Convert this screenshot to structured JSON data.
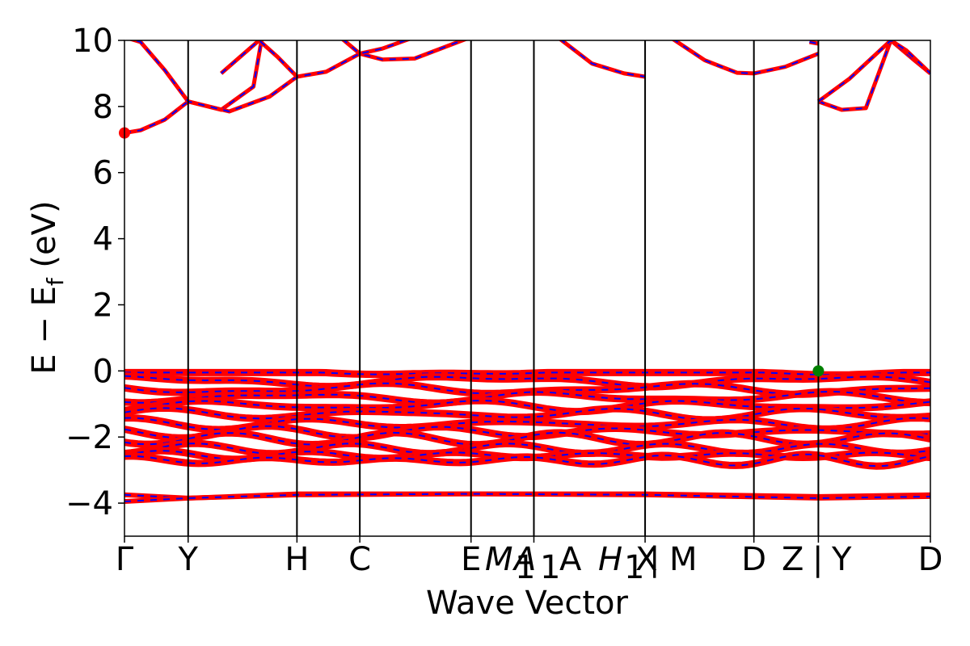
{
  "chart_data": {
    "type": "line",
    "xlabel": "Wave Vector",
    "ylabel": "E − E",
    "ylabel_sub": "f",
    "ylabel_unit": " (eV)",
    "ylim": [
      -5,
      10
    ],
    "yticks": [
      {
        "value": -4,
        "label": "−4"
      },
      {
        "value": -2,
        "label": "−2"
      },
      {
        "value": 0,
        "label": "0"
      },
      {
        "value": 2,
        "label": "2"
      },
      {
        "value": 4,
        "label": "4"
      },
      {
        "value": 6,
        "label": "6"
      },
      {
        "value": 8,
        "label": "8"
      },
      {
        "value": 10,
        "label": "10"
      }
    ],
    "xlim": [
      0,
      1
    ],
    "kpoints": [
      {
        "pos": 0.0,
        "label": "Γ"
      },
      {
        "pos": 0.079,
        "label": "Y"
      },
      {
        "pos": 0.214,
        "label": "H"
      },
      {
        "pos": 0.292,
        "label": "C"
      },
      {
        "pos": 0.43,
        "label": "E"
      },
      {
        "pos": 0.508,
        "label": "M₁|A"
      },
      {
        "pos": 0.646,
        "label": "H₁|X | M"
      },
      {
        "pos": 0.781,
        "label": "D"
      },
      {
        "pos": 0.861,
        "label": "Z | Y"
      },
      {
        "pos": 1.0,
        "label": "D"
      }
    ],
    "kpoint_label_text": [
      "Γ",
      "Y",
      "H",
      "C",
      "E",
      "M",
      "1",
      "A",
      "1",
      "A",
      "H",
      "1",
      "X",
      "|",
      "M",
      "D",
      "Z",
      "|",
      "Y",
      "D"
    ],
    "segment_breaks": [
      0.646,
      0.861
    ],
    "conduction_bands": [
      [
        [
          0.0,
          7.2
        ],
        [
          0.02,
          7.28
        ],
        [
          0.05,
          7.6
        ],
        [
          0.079,
          8.15
        ],
        [
          0.12,
          7.9
        ],
        [
          0.16,
          8.6
        ],
        [
          0.17,
          10.0
        ]
      ],
      [
        [
          0.0,
          10.1
        ],
        [
          0.02,
          9.95
        ],
        [
          0.05,
          9.1
        ],
        [
          0.079,
          8.15
        ],
        [
          0.13,
          7.85
        ],
        [
          0.18,
          8.3
        ],
        [
          0.214,
          8.9
        ],
        [
          0.25,
          9.05
        ],
        [
          0.292,
          9.6
        ],
        [
          0.32,
          9.42
        ],
        [
          0.36,
          9.45
        ],
        [
          0.43,
          10.1
        ]
      ],
      [
        [
          0.12,
          9.0
        ],
        [
          0.167,
          10.0
        ],
        [
          0.19,
          9.5
        ],
        [
          0.214,
          8.9
        ]
      ],
      [
        [
          0.27,
          10.05
        ],
        [
          0.292,
          9.6
        ],
        [
          0.32,
          9.75
        ],
        [
          0.36,
          10.1
        ]
      ],
      [
        [
          0.54,
          10.05
        ],
        [
          0.58,
          9.3
        ],
        [
          0.62,
          9.0
        ],
        [
          0.646,
          8.9
        ]
      ],
      [
        [
          0.68,
          10.05
        ],
        [
          0.72,
          9.4
        ],
        [
          0.76,
          9.02
        ],
        [
          0.781,
          9.0
        ],
        [
          0.82,
          9.2
        ],
        [
          0.861,
          9.6
        ]
      ],
      [
        [
          0.85,
          9.95
        ],
        [
          0.861,
          9.9
        ]
      ],
      [
        [
          0.861,
          8.15
        ],
        [
          0.89,
          7.9
        ],
        [
          0.92,
          7.95
        ],
        [
          0.951,
          10.0
        ],
        [
          0.98,
          9.4
        ],
        [
          1.0,
          9.0
        ]
      ],
      [
        [
          0.861,
          8.15
        ],
        [
          0.9,
          8.85
        ],
        [
          0.951,
          10.0
        ],
        [
          0.97,
          9.7
        ],
        [
          1.0,
          9.0
        ]
      ]
    ],
    "valence_bands_base": [
      -0.05,
      -0.3,
      -0.55,
      -0.8,
      -1.05,
      -1.3,
      -1.6,
      -1.85,
      -2.05,
      -2.35,
      -2.55,
      -2.7
    ],
    "core_bands": [
      [
        [
          0.0,
          -3.75
        ],
        [
          0.079,
          -3.85
        ],
        [
          0.214,
          -3.72
        ],
        [
          0.43,
          -3.72
        ],
        [
          0.646,
          -3.72
        ],
        [
          0.861,
          -3.8
        ],
        [
          1.0,
          -3.75
        ]
      ],
      [
        [
          0.0,
          -3.95
        ],
        [
          0.079,
          -3.85
        ],
        [
          0.214,
          -3.75
        ],
        [
          0.43,
          -3.72
        ],
        [
          0.646,
          -3.75
        ],
        [
          0.861,
          -3.85
        ],
        [
          1.0,
          -3.8
        ]
      ]
    ],
    "markers": [
      {
        "name": "cbm",
        "x": 0.0,
        "y": 7.2,
        "color": "#ff0000"
      },
      {
        "name": "vbm",
        "x": 0.861,
        "y": 0.0,
        "color": "#008000"
      }
    ],
    "colors": {
      "spin_up": "#ff0000",
      "spin_down": "#0000ff",
      "kline": "#000000"
    }
  }
}
